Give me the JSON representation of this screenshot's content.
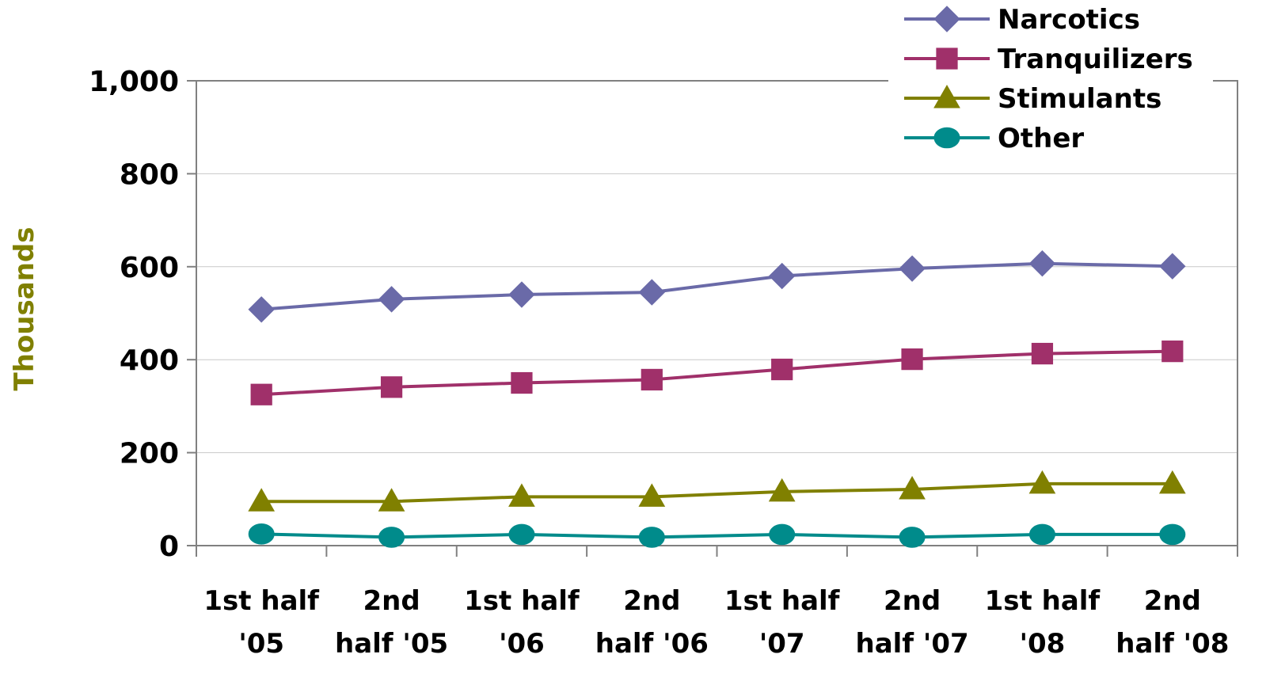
{
  "chart_data": {
    "type": "line",
    "categories": [
      [
        "1st half",
        "'05"
      ],
      [
        "2nd",
        "half '05"
      ],
      [
        "1st half",
        "'06"
      ],
      [
        "2nd",
        "half '06"
      ],
      [
        "1st half",
        "'07"
      ],
      [
        "2nd",
        "half '07"
      ],
      [
        "1st half",
        "'08"
      ],
      [
        "2nd",
        "half '08"
      ]
    ],
    "ylabel": "Thousands",
    "ylim": [
      0,
      1000
    ],
    "yticks": [
      0,
      200,
      400,
      600,
      800,
      1000
    ],
    "ytick_labels": [
      "0",
      "200",
      "400",
      "600",
      "800",
      "1,000"
    ],
    "grid": true,
    "legend_position": "top-right",
    "series": [
      {
        "name": "Narcotics",
        "color": "#6A6AA8",
        "marker": "diamond",
        "values": [
          508,
          530,
          540,
          545,
          580,
          596,
          607,
          601
        ]
      },
      {
        "name": "Tranquilizers",
        "color": "#A0306A",
        "marker": "square",
        "values": [
          325,
          341,
          350,
          357,
          379,
          401,
          413,
          418
        ]
      },
      {
        "name": "Stimulants",
        "color": "#808000",
        "marker": "triangle",
        "values": [
          95,
          95,
          105,
          105,
          116,
          121,
          133,
          133
        ]
      },
      {
        "name": "Other",
        "color": "#008B8B",
        "marker": "circle",
        "values": [
          25,
          18,
          24,
          18,
          24,
          18,
          24,
          24
        ]
      }
    ],
    "ylabel_color": "#808000"
  }
}
